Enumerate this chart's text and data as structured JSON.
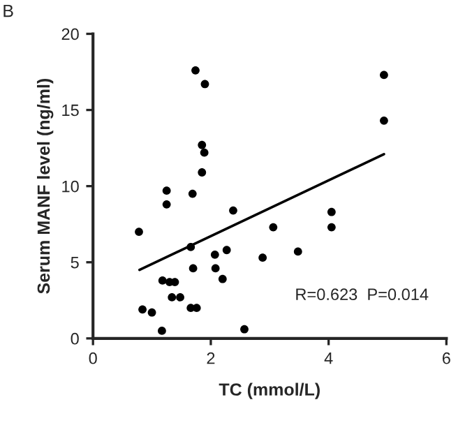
{
  "chart_data": {
    "type": "scatter",
    "xlabel": "TC (mmol/L)",
    "ylabel": "Serum MANF level (ng/ml)",
    "annotations": [
      "B",
      "R=0.623  P=0.014"
    ],
    "xlim": [
      0,
      6
    ],
    "xticks": [
      0,
      2,
      4,
      6
    ],
    "ylim": [
      0,
      20
    ],
    "yticks": [
      0,
      5,
      10,
      15,
      20
    ],
    "grid": false,
    "series": [
      {
        "marker": "circle",
        "color": "#000000",
        "x": [
          1.74,
          1.9,
          4.94,
          4.94,
          1.85,
          1.89,
          1.85,
          1.25,
          1.69,
          1.25,
          2.38,
          0.78,
          3.06,
          4.05,
          4.05,
          1.66,
          2.27,
          2.07,
          2.88,
          3.48,
          1.7,
          2.08,
          2.2,
          1.18,
          1.3,
          1.39,
          1.34,
          1.48,
          0.84,
          1.0,
          1.66,
          1.76,
          1.17,
          2.57
        ],
        "values": [
          17.6,
          16.7,
          17.3,
          14.3,
          12.7,
          12.2,
          10.9,
          9.7,
          9.5,
          8.8,
          8.4,
          7.0,
          7.3,
          8.3,
          7.3,
          6.0,
          5.8,
          5.5,
          5.3,
          5.7,
          4.6,
          4.6,
          3.9,
          3.8,
          3.7,
          3.7,
          2.7,
          2.7,
          1.9,
          1.7,
          2.0,
          2.0,
          0.5,
          0.6
        ]
      },
      {
        "type": "line",
        "marker": "none",
        "color": "#000000",
        "x": [
          0.79,
          4.94
        ],
        "values": [
          4.5,
          12.1
        ]
      }
    ]
  }
}
